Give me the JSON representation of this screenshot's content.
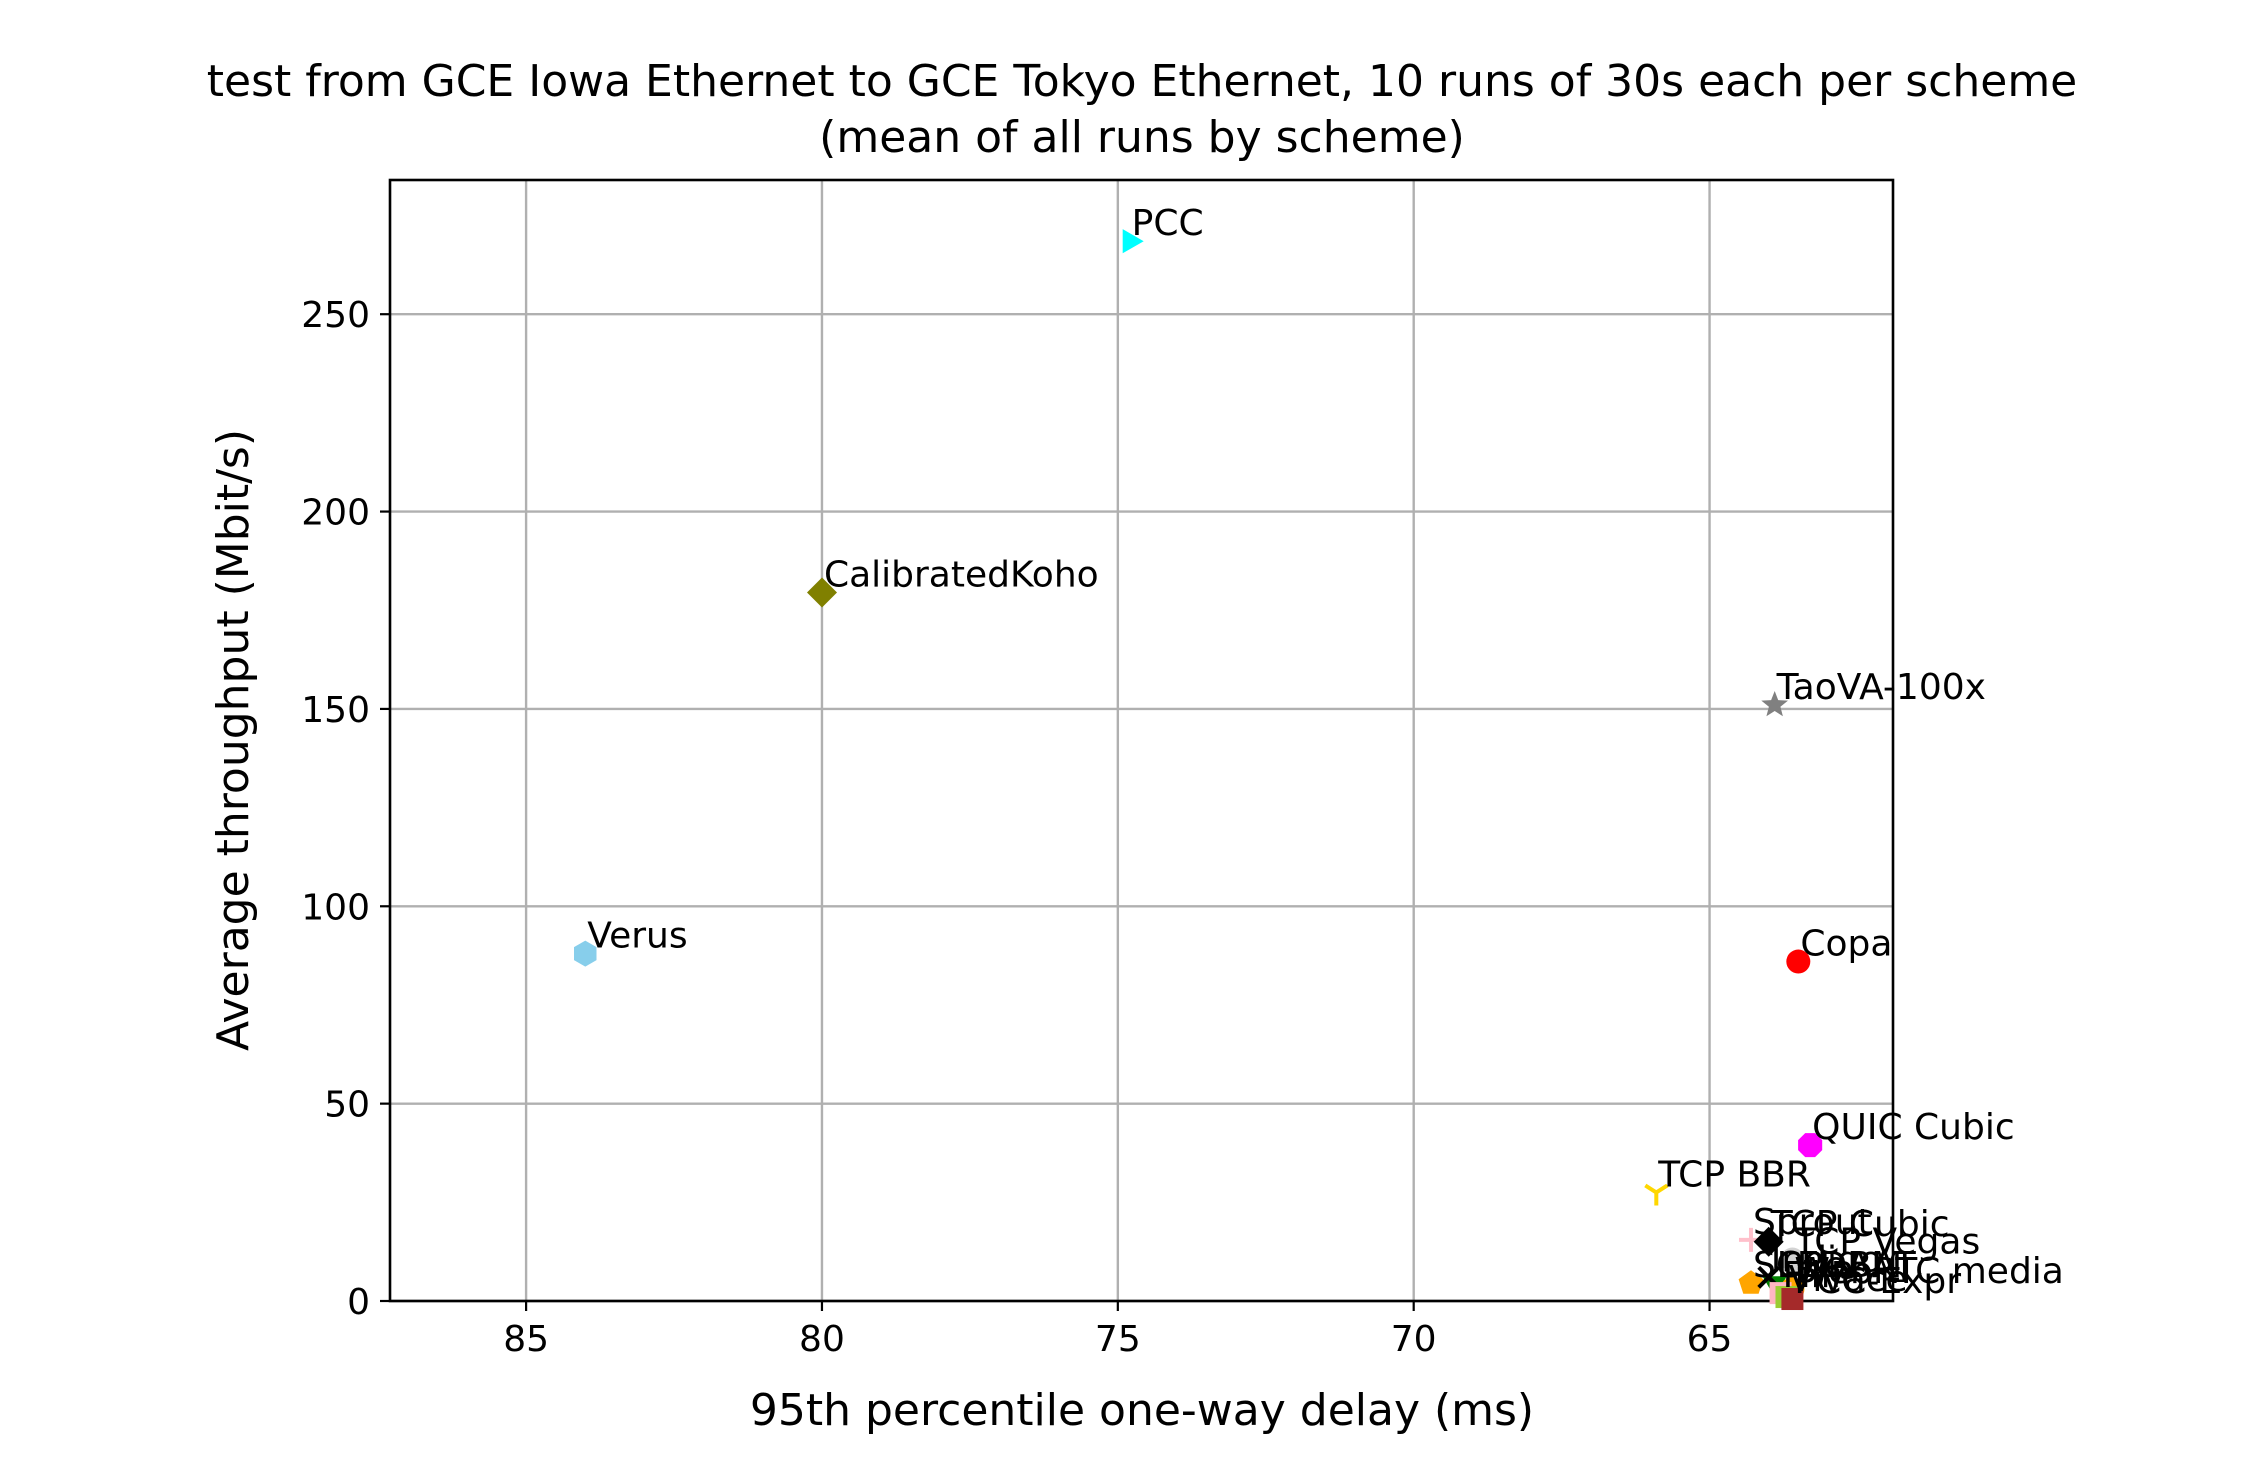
{
  "chart_data": {
    "type": "scatter",
    "title": "test from GCE Iowa Ethernet to GCE Tokyo Ethernet, 10 runs of 30s each per scheme",
    "subtitle": "(mean of all runs by scheme)",
    "xlabel": "95th percentile one-way delay (ms)",
    "ylabel": "Average throughput (Mbit/s)",
    "x_inverted": true,
    "xlim": [
      87.3,
      61.9
    ],
    "ylim": [
      0,
      284
    ],
    "xticks": [
      85,
      80,
      75,
      70,
      65
    ],
    "yticks": [
      0,
      50,
      100,
      150,
      200,
      250
    ],
    "grid": true,
    "points": [
      {
        "label": "PCC",
        "x": 74.8,
        "y": 268.5,
        "marker": "triangle-right",
        "color": "#00ffff"
      },
      {
        "label": "CalibratedKoho",
        "x": 80.0,
        "y": 179.5,
        "marker": "diamond",
        "color": "#808000"
      },
      {
        "label": "TaoVA-100x",
        "x": 63.9,
        "y": 151.0,
        "marker": "star",
        "color": "#808080"
      },
      {
        "label": "Verus",
        "x": 84.0,
        "y": 88.0,
        "marker": "hexagon",
        "color": "#87ceeb"
      },
      {
        "label": "Copa",
        "x": 63.5,
        "y": 86.0,
        "marker": "circle",
        "color": "#ff0000"
      },
      {
        "label": "QUIC Cubic",
        "x": 63.3,
        "y": 39.5,
        "marker": "octagon",
        "color": "#ff00ff"
      },
      {
        "label": "TCP BBR",
        "x": 65.9,
        "y": 27.5,
        "marker": "tri-down",
        "color": "#ffd700"
      },
      {
        "label": "Sprout",
        "x": 64.3,
        "y": 15.5,
        "marker": "plus",
        "color": "#ffc0cb"
      },
      {
        "label": "TCP Cubic",
        "x": 64.0,
        "y": 15.0,
        "marker": "diamond",
        "color": "#000000"
      },
      {
        "label": "TCP Vegas",
        "x": 63.6,
        "y": 10.5,
        "marker": "circle",
        "color": "#d3d3d3"
      },
      {
        "label": "SCReAM",
        "x": 64.3,
        "y": 4.5,
        "marker": "pentagon",
        "color": "#ffa500"
      },
      {
        "label": "LEDBAT",
        "x": 63.9,
        "y": 4.5,
        "marker": "triangle-down",
        "color": "#008000"
      },
      {
        "label": "WebRTC media",
        "x": 63.6,
        "y": 3.0,
        "marker": "circle",
        "color": "#ffa500"
      },
      {
        "label": "Indigo",
        "x": 64.0,
        "y": 6.0,
        "marker": "x",
        "color": "#000000"
      },
      {
        "label": "FillP",
        "x": 63.8,
        "y": 2.0,
        "marker": "square",
        "color": "#ffb6c1"
      },
      {
        "label": "Vivace",
        "x": 63.7,
        "y": 1.0,
        "marker": "square",
        "color": "#9acd32"
      },
      {
        "label": "PCC-Expr",
        "x": 63.6,
        "y": 0.5,
        "marker": "square",
        "color": "#a52a2a"
      }
    ]
  }
}
